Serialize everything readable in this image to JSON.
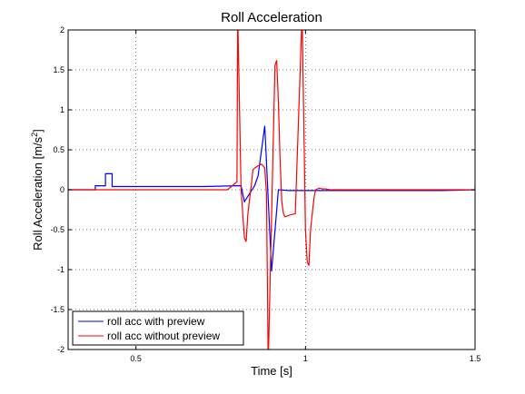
{
  "chart_data": {
    "type": "line",
    "title": "Roll Acceleration",
    "xlabel": "Time [s]",
    "ylabel_main": "Roll Acceleration [m/s",
    "ylabel_sup": "2",
    "ylabel_end": "]",
    "xlim": [
      0.3,
      1.5
    ],
    "ylim": [
      -2,
      2
    ],
    "xticks": [
      0.5,
      1,
      1.5
    ],
    "xtick_labels": [
      "0.5",
      "1",
      "1.5"
    ],
    "yticks": [
      -2,
      -1.5,
      -1,
      -0.5,
      0,
      0.5,
      1,
      1.5,
      2
    ],
    "ytick_labels": [
      "-2",
      "-1.5",
      "-1",
      "-0.5",
      "0",
      "0.5",
      "1",
      "1.5",
      "2"
    ],
    "grid": true,
    "legend_position": "bottom-left",
    "series": [
      {
        "name": "roll acc with preview",
        "color": "#0000ff",
        "x": [
          0.3,
          0.38,
          0.38,
          0.41,
          0.41,
          0.43,
          0.43,
          0.5,
          0.6,
          0.7,
          0.8,
          0.8,
          0.81,
          0.81,
          0.82,
          0.82,
          0.85,
          0.85,
          0.86,
          0.86,
          0.88,
          0.88,
          0.9,
          0.9,
          0.92,
          0.92,
          0.95,
          1.0,
          1.1,
          1.2,
          1.3,
          1.4,
          1.5,
          1.5
        ],
        "y": [
          0.0,
          0.0,
          0.05,
          0.05,
          0.2,
          0.2,
          0.04,
          0.04,
          0.04,
          0.04,
          0.05,
          0.05,
          0.05,
          0.05,
          -0.15,
          -0.15,
          0.05,
          0.05,
          0.17,
          0.17,
          0.8,
          0.8,
          -1.02,
          -1.02,
          0.0,
          0.0,
          -0.01,
          -0.01,
          -0.01,
          -0.01,
          -0.01,
          -0.01,
          0.0,
          0.05
        ]
      },
      {
        "name": "roll acc without preview",
        "color": "#ff0000",
        "x": [
          0.3,
          0.4,
          0.5,
          0.6,
          0.7,
          0.77,
          0.798,
          0.8,
          0.8,
          0.81,
          0.81,
          0.82,
          0.82,
          0.825,
          0.825,
          0.83,
          0.83,
          0.84,
          0.84,
          0.845,
          0.845,
          0.85,
          0.85,
          0.86,
          0.86,
          0.87,
          0.87,
          0.875,
          0.875,
          0.88,
          0.88,
          0.885,
          0.885,
          0.89,
          0.89,
          0.91,
          0.91,
          0.915,
          0.915,
          0.92,
          0.92,
          0.925,
          0.925,
          0.93,
          0.93,
          0.935,
          0.935,
          0.94,
          0.94,
          0.95,
          0.95,
          0.97,
          0.97,
          0.99,
          0.99,
          1.0,
          1.0,
          1.005,
          1.005,
          1.01,
          1.01,
          1.015,
          1.015,
          1.02,
          1.02,
          1.025,
          1.025,
          1.03,
          1.03,
          1.04,
          1.04,
          1.05,
          1.05,
          1.055,
          1.055,
          1.06,
          1.06,
          1.07,
          1.1,
          1.2,
          1.3,
          1.4,
          1.5
        ],
        "y": [
          0.0,
          0.0,
          0.0,
          0.0,
          0.0,
          0.0,
          0.1,
          2.2,
          2.2,
          0.0,
          0.0,
          -0.6,
          -0.6,
          -0.65,
          -0.65,
          -0.3,
          -0.3,
          0.05,
          0.05,
          0.25,
          0.25,
          0.27,
          0.27,
          0.3,
          0.3,
          0.32,
          0.32,
          0.3,
          0.3,
          0.27,
          0.27,
          -0.05,
          -0.05,
          -2.2,
          -2.2,
          1.55,
          1.55,
          1.62,
          1.62,
          1.1,
          1.1,
          0.4,
          0.4,
          -0.15,
          -0.15,
          -0.3,
          -0.3,
          -0.34,
          -0.34,
          -0.32,
          -0.32,
          -0.3,
          -0.3,
          2.2,
          2.2,
          -0.5,
          -0.5,
          -0.9,
          -0.9,
          -0.95,
          -0.95,
          -0.5,
          -0.5,
          -0.3,
          -0.3,
          -0.1,
          -0.1,
          0.0,
          0.0,
          0.02,
          0.02,
          0.01,
          0.01,
          0.01,
          0.01,
          0.01,
          0.01,
          0.0,
          0.0,
          0.0,
          0.0,
          0.0,
          0.0
        ]
      }
    ]
  }
}
